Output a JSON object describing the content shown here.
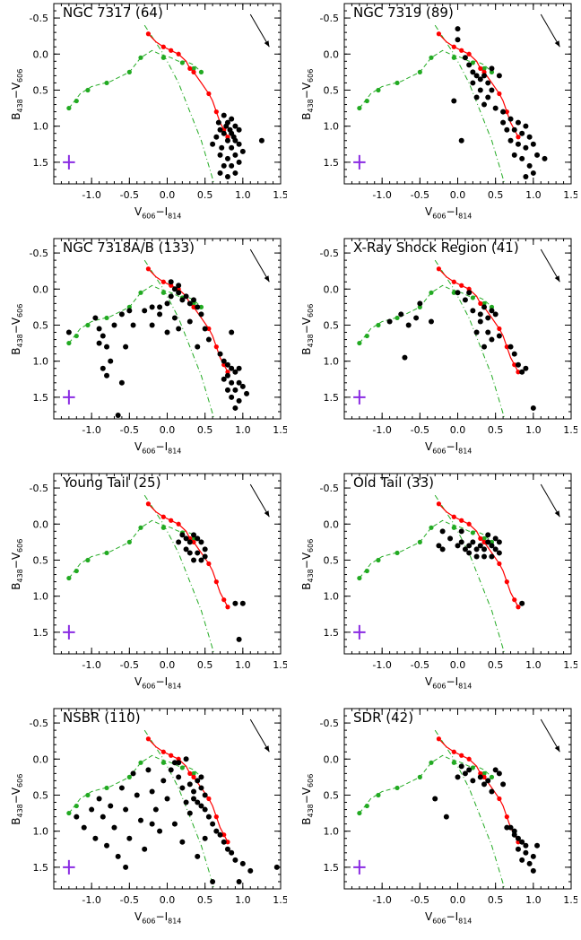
{
  "axes": {
    "xlabel": {
      "main1": "V",
      "sub1": "606",
      "dash": "−",
      "main2": "I",
      "sub2": "814"
    },
    "ylabel": {
      "main1": "B",
      "sub1": "438",
      "dash": "−",
      "main2": "V",
      "sub2": "606"
    },
    "xlim": [
      -1.5,
      1.5
    ],
    "ylim": [
      1.8,
      -0.7
    ],
    "xticks": [
      "-1.0",
      "-0.5",
      "0.0",
      "0.5",
      "1.0",
      "1.5"
    ],
    "xtick_values": [
      -1.0,
      -0.5,
      0.0,
      0.5,
      1.0,
      1.5
    ],
    "yticks": [
      "-0.5",
      "0.0",
      "0.5",
      "1.0",
      "1.5"
    ],
    "ytick_values": [
      -0.5,
      0.0,
      0.5,
      1.0,
      1.5
    ]
  },
  "colors": {
    "points": "#000000",
    "red_track": "#ff0000",
    "green_track": "#22aa22",
    "error_bar": "#8a2be2",
    "arrow": "#000000"
  },
  "chart_data": [
    {
      "type": "scatter",
      "title": "NGC 7317 (64)",
      "points": [
        [
          0.75,
          0.85
        ],
        [
          0.8,
          0.95
        ],
        [
          0.85,
          0.9
        ],
        [
          0.9,
          1.0
        ],
        [
          0.7,
          1.05
        ],
        [
          0.75,
          1.1
        ],
        [
          0.85,
          1.1
        ],
        [
          0.95,
          1.05
        ],
        [
          0.65,
          1.15
        ],
        [
          0.8,
          1.2
        ],
        [
          0.9,
          1.2
        ],
        [
          0.72,
          1.3
        ],
        [
          0.85,
          1.3
        ],
        [
          0.95,
          1.25
        ],
        [
          0.7,
          1.4
        ],
        [
          0.8,
          1.45
        ],
        [
          0.9,
          1.4
        ],
        [
          1.0,
          1.35
        ],
        [
          0.75,
          1.55
        ],
        [
          0.85,
          1.55
        ],
        [
          0.95,
          1.5
        ],
        [
          0.7,
          1.65
        ],
        [
          0.8,
          1.7
        ],
        [
          0.9,
          1.65
        ],
        [
          1.25,
          1.2
        ],
        [
          0.78,
          1.0
        ],
        [
          0.88,
          1.15
        ],
        [
          0.68,
          0.95
        ],
        [
          0.6,
          1.25
        ],
        [
          0.83,
          1.05
        ]
      ]
    },
    {
      "type": "scatter",
      "title": "NGC 7319 (89)",
      "points": [
        [
          0.0,
          -0.35
        ],
        [
          0.0,
          -0.2
        ],
        [
          0.1,
          0.05
        ],
        [
          0.15,
          0.15
        ],
        [
          0.2,
          0.25
        ],
        [
          0.25,
          0.3
        ],
        [
          0.3,
          0.35
        ],
        [
          0.35,
          0.3
        ],
        [
          0.4,
          0.4
        ],
        [
          0.3,
          0.5
        ],
        [
          0.2,
          0.4
        ],
        [
          0.25,
          0.6
        ],
        [
          0.4,
          0.6
        ],
        [
          0.45,
          0.5
        ],
        [
          0.35,
          0.7
        ],
        [
          0.5,
          0.75
        ],
        [
          0.6,
          0.8
        ],
        [
          0.7,
          0.9
        ],
        [
          0.8,
          0.95
        ],
        [
          0.9,
          1.0
        ],
        [
          0.75,
          1.05
        ],
        [
          0.85,
          1.1
        ],
        [
          0.95,
          1.15
        ],
        [
          0.7,
          1.2
        ],
        [
          0.8,
          1.25
        ],
        [
          1.0,
          1.25
        ],
        [
          0.9,
          1.3
        ],
        [
          0.75,
          1.4
        ],
        [
          0.85,
          1.45
        ],
        [
          1.05,
          1.4
        ],
        [
          1.15,
          1.45
        ],
        [
          0.95,
          1.55
        ],
        [
          1.0,
          1.65
        ],
        [
          0.9,
          1.7
        ],
        [
          0.05,
          1.2
        ],
        [
          -0.05,
          0.65
        ],
        [
          0.45,
          0.2
        ],
        [
          0.55,
          0.3
        ],
        [
          0.6,
          0.95
        ],
        [
          0.65,
          1.05
        ]
      ]
    },
    {
      "type": "scatter",
      "title": "NGC 7318A/B (133)",
      "points": [
        [
          -1.3,
          0.6
        ],
        [
          -0.95,
          0.4
        ],
        [
          -0.9,
          0.55
        ],
        [
          -0.85,
          0.65
        ],
        [
          -0.9,
          0.75
        ],
        [
          -0.8,
          0.8
        ],
        [
          -0.75,
          1.0
        ],
        [
          -0.85,
          1.1
        ],
        [
          -0.8,
          1.2
        ],
        [
          -0.7,
          0.5
        ],
        [
          -0.6,
          0.35
        ],
        [
          -0.5,
          0.3
        ],
        [
          -0.45,
          0.5
        ],
        [
          -0.55,
          0.8
        ],
        [
          -0.6,
          1.3
        ],
        [
          -0.65,
          1.75
        ],
        [
          -0.3,
          0.3
        ],
        [
          -0.2,
          0.25
        ],
        [
          -0.1,
          0.35
        ],
        [
          0.0,
          0.2
        ],
        [
          0.05,
          0.1
        ],
        [
          0.1,
          0.0
        ],
        [
          0.15,
          0.05
        ],
        [
          0.2,
          0.15
        ],
        [
          0.25,
          0.1
        ],
        [
          0.3,
          0.2
        ],
        [
          0.35,
          0.15
        ],
        [
          0.4,
          0.25
        ],
        [
          0.45,
          0.35
        ],
        [
          0.3,
          0.45
        ],
        [
          0.1,
          0.4
        ],
        [
          0.0,
          0.6
        ],
        [
          -0.1,
          0.25
        ],
        [
          0.05,
          -0.1
        ],
        [
          0.15,
          -0.05
        ],
        [
          0.5,
          0.55
        ],
        [
          0.55,
          0.7
        ],
        [
          0.4,
          0.8
        ],
        [
          0.7,
          0.9
        ],
        [
          0.75,
          1.0
        ],
        [
          0.8,
          1.05
        ],
        [
          0.85,
          1.1
        ],
        [
          0.9,
          1.15
        ],
        [
          0.95,
          1.1
        ],
        [
          0.8,
          1.2
        ],
        [
          0.75,
          1.25
        ],
        [
          0.85,
          1.3
        ],
        [
          0.95,
          1.3
        ],
        [
          1.0,
          1.35
        ],
        [
          0.9,
          1.4
        ],
        [
          0.8,
          1.4
        ],
        [
          0.85,
          1.5
        ],
        [
          0.95,
          1.55
        ],
        [
          0.9,
          1.65
        ],
        [
          1.05,
          1.45
        ],
        [
          0.85,
          0.6
        ],
        [
          0.15,
          0.55
        ],
        [
          -0.2,
          0.5
        ]
      ]
    },
    {
      "type": "scatter",
      "title": "X-Ray Shock Region (41)",
      "points": [
        [
          -0.9,
          0.45
        ],
        [
          -0.75,
          0.35
        ],
        [
          -0.65,
          0.5
        ],
        [
          -0.55,
          0.4
        ],
        [
          -0.7,
          0.95
        ],
        [
          -0.5,
          0.2
        ],
        [
          -0.35,
          0.45
        ],
        [
          0.0,
          0.05
        ],
        [
          0.1,
          0.15
        ],
        [
          0.2,
          0.3
        ],
        [
          0.3,
          0.35
        ],
        [
          0.35,
          0.25
        ],
        [
          0.4,
          0.4
        ],
        [
          0.45,
          0.3
        ],
        [
          0.5,
          0.35
        ],
        [
          0.3,
          0.45
        ],
        [
          0.25,
          0.6
        ],
        [
          0.4,
          0.6
        ],
        [
          0.45,
          0.7
        ],
        [
          0.35,
          0.8
        ],
        [
          0.55,
          0.65
        ],
        [
          0.7,
          0.8
        ],
        [
          0.75,
          0.9
        ],
        [
          0.8,
          1.05
        ],
        [
          0.85,
          1.15
        ],
        [
          0.9,
          1.1
        ],
        [
          1.0,
          1.65
        ],
        [
          0.15,
          0.05
        ]
      ]
    },
    {
      "type": "scatter",
      "title": "Young Tail (25)",
      "points": [
        [
          0.2,
          0.15
        ],
        [
          0.25,
          0.2
        ],
        [
          0.3,
          0.25
        ],
        [
          0.35,
          0.15
        ],
        [
          0.4,
          0.2
        ],
        [
          0.45,
          0.25
        ],
        [
          0.5,
          0.35
        ],
        [
          0.4,
          0.4
        ],
        [
          0.3,
          0.4
        ],
        [
          0.35,
          0.5
        ],
        [
          0.45,
          0.5
        ],
        [
          0.5,
          0.45
        ],
        [
          0.25,
          0.35
        ],
        [
          0.9,
          1.1
        ],
        [
          1.0,
          1.1
        ],
        [
          0.95,
          1.6
        ],
        [
          0.15,
          0.25
        ]
      ]
    },
    {
      "type": "scatter",
      "title": "Old Tail (33)",
      "points": [
        [
          -0.25,
          0.3
        ],
        [
          -0.2,
          0.35
        ],
        [
          -0.1,
          0.2
        ],
        [
          0.0,
          0.3
        ],
        [
          0.05,
          0.25
        ],
        [
          0.1,
          0.35
        ],
        [
          0.15,
          0.3
        ],
        [
          0.2,
          0.25
        ],
        [
          0.25,
          0.35
        ],
        [
          0.3,
          0.3
        ],
        [
          0.35,
          0.35
        ],
        [
          0.4,
          0.25
        ],
        [
          0.45,
          0.3
        ],
        [
          0.5,
          0.35
        ],
        [
          0.55,
          0.4
        ],
        [
          0.45,
          0.45
        ],
        [
          0.35,
          0.45
        ],
        [
          0.25,
          0.45
        ],
        [
          0.15,
          0.4
        ],
        [
          0.4,
          0.15
        ],
        [
          0.5,
          0.2
        ],
        [
          0.55,
          0.25
        ],
        [
          0.85,
          1.1
        ],
        [
          -0.2,
          0.1
        ],
        [
          0.05,
          0.1
        ]
      ]
    },
    {
      "type": "scatter",
      "title": "NSBR (110)",
      "points": [
        [
          -1.2,
          0.8
        ],
        [
          -1.1,
          0.95
        ],
        [
          -1.0,
          0.7
        ],
        [
          -0.95,
          1.1
        ],
        [
          -0.9,
          0.55
        ],
        [
          -0.85,
          0.8
        ],
        [
          -0.8,
          1.2
        ],
        [
          -0.75,
          0.65
        ],
        [
          -0.7,
          0.95
        ],
        [
          -0.65,
          1.35
        ],
        [
          -0.6,
          0.4
        ],
        [
          -0.55,
          0.7
        ],
        [
          -0.5,
          1.1
        ],
        [
          -0.45,
          0.2
        ],
        [
          -0.4,
          0.5
        ],
        [
          -0.35,
          0.85
        ],
        [
          -0.3,
          1.25
        ],
        [
          -0.25,
          0.15
        ],
        [
          -0.2,
          0.45
        ],
        [
          -0.15,
          0.7
        ],
        [
          -0.1,
          1.0
        ],
        [
          -0.05,
          0.3
        ],
        [
          0.0,
          0.55
        ],
        [
          0.05,
          0.15
        ],
        [
          0.1,
          0.05
        ],
        [
          0.15,
          0.25
        ],
        [
          0.2,
          0.4
        ],
        [
          0.25,
          0.6
        ],
        [
          0.3,
          0.35
        ],
        [
          0.35,
          0.45
        ],
        [
          0.4,
          0.3
        ],
        [
          0.45,
          0.4
        ],
        [
          0.5,
          0.5
        ],
        [
          0.35,
          0.55
        ],
        [
          0.4,
          0.6
        ],
        [
          0.45,
          0.65
        ],
        [
          0.5,
          0.7
        ],
        [
          0.3,
          0.75
        ],
        [
          0.55,
          0.8
        ],
        [
          0.6,
          0.9
        ],
        [
          0.65,
          1.0
        ],
        [
          0.7,
          1.05
        ],
        [
          0.75,
          1.15
        ],
        [
          0.8,
          1.25
        ],
        [
          0.85,
          1.3
        ],
        [
          0.9,
          1.4
        ],
        [
          1.0,
          1.45
        ],
        [
          1.1,
          1.55
        ],
        [
          0.95,
          1.7
        ],
        [
          1.45,
          1.5
        ],
        [
          0.5,
          1.1
        ],
        [
          0.4,
          1.35
        ],
        [
          0.2,
          1.15
        ],
        [
          0.1,
          0.9
        ],
        [
          -0.55,
          1.5
        ],
        [
          0.6,
          1.7
        ],
        [
          -0.2,
          0.9
        ],
        [
          0.25,
          0.0
        ],
        [
          0.15,
          0.05
        ],
        [
          0.45,
          0.25
        ]
      ]
    },
    {
      "type": "scatter",
      "title": "SDR (42)",
      "points": [
        [
          -0.3,
          0.55
        ],
        [
          -0.15,
          0.8
        ],
        [
          0.0,
          0.25
        ],
        [
          0.05,
          0.1
        ],
        [
          0.1,
          0.2
        ],
        [
          0.15,
          0.15
        ],
        [
          0.2,
          0.3
        ],
        [
          0.3,
          0.25
        ],
        [
          0.35,
          0.35
        ],
        [
          0.4,
          0.3
        ],
        [
          0.45,
          0.45
        ],
        [
          0.5,
          0.15
        ],
        [
          0.55,
          0.2
        ],
        [
          0.6,
          0.35
        ],
        [
          0.7,
          0.95
        ],
        [
          0.75,
          1.05
        ],
        [
          0.8,
          1.1
        ],
        [
          0.85,
          1.15
        ],
        [
          0.9,
          1.2
        ],
        [
          0.8,
          1.25
        ],
        [
          0.9,
          1.3
        ],
        [
          1.0,
          1.35
        ],
        [
          1.05,
          1.2
        ],
        [
          0.95,
          1.45
        ],
        [
          1.0,
          1.55
        ],
        [
          0.85,
          1.4
        ],
        [
          0.75,
          1.0
        ],
        [
          0.65,
          0.95
        ]
      ]
    }
  ],
  "red_track": [
    [
      -0.25,
      -0.28
    ],
    [
      -0.15,
      -0.17
    ],
    [
      -0.05,
      -0.1
    ],
    [
      0.05,
      -0.05
    ],
    [
      0.15,
      0.0
    ],
    [
      0.25,
      0.1
    ],
    [
      0.3,
      0.2
    ],
    [
      0.35,
      0.25
    ],
    [
      0.45,
      0.4
    ],
    [
      0.55,
      0.55
    ],
    [
      0.6,
      0.65
    ],
    [
      0.65,
      0.8
    ],
    [
      0.7,
      0.95
    ],
    [
      0.75,
      1.05
    ],
    [
      0.8,
      1.15
    ]
  ],
  "red_dots": [
    [
      -0.25,
      -0.28
    ],
    [
      -0.05,
      -0.1
    ],
    [
      0.05,
      -0.05
    ],
    [
      0.15,
      0.0
    ],
    [
      0.3,
      0.2
    ],
    [
      0.35,
      0.25
    ],
    [
      0.55,
      0.55
    ],
    [
      0.65,
      0.8
    ],
    [
      0.75,
      1.05
    ],
    [
      0.8,
      1.15
    ]
  ],
  "green_track": [
    [
      -1.3,
      0.75
    ],
    [
      -1.15,
      0.55
    ],
    [
      -1.0,
      0.45
    ],
    [
      -0.75,
      0.38
    ],
    [
      -0.5,
      0.25
    ],
    [
      -0.35,
      0.05
    ],
    [
      -0.2,
      -0.05
    ],
    [
      -0.1,
      0.0
    ],
    [
      0.05,
      0.05
    ],
    [
      0.15,
      0.1
    ],
    [
      0.25,
      0.1
    ],
    [
      0.35,
      0.15
    ],
    [
      0.45,
      0.25
    ]
  ],
  "green_dots": [
    [
      -1.3,
      0.75
    ],
    [
      -1.2,
      0.65
    ],
    [
      -1.05,
      0.5
    ],
    [
      -0.8,
      0.4
    ],
    [
      -0.5,
      0.25
    ],
    [
      -0.35,
      0.05
    ],
    [
      -0.05,
      0.05
    ],
    [
      0.2,
      0.12
    ],
    [
      0.35,
      0.2
    ],
    [
      0.45,
      0.25
    ]
  ],
  "green_dashdot": [
    [
      -0.3,
      -0.4
    ],
    [
      -0.05,
      0.0
    ],
    [
      0.15,
      0.4
    ],
    [
      0.3,
      0.8
    ],
    [
      0.45,
      1.2
    ],
    [
      0.55,
      1.55
    ],
    [
      0.62,
      1.8
    ]
  ],
  "error_bar": {
    "x": -1.3,
    "y": 1.5,
    "dx": 0.08,
    "dy": 0.1
  },
  "arrow": {
    "x1": 1.1,
    "y1": -0.55,
    "x2": 1.35,
    "y2": -0.1
  }
}
